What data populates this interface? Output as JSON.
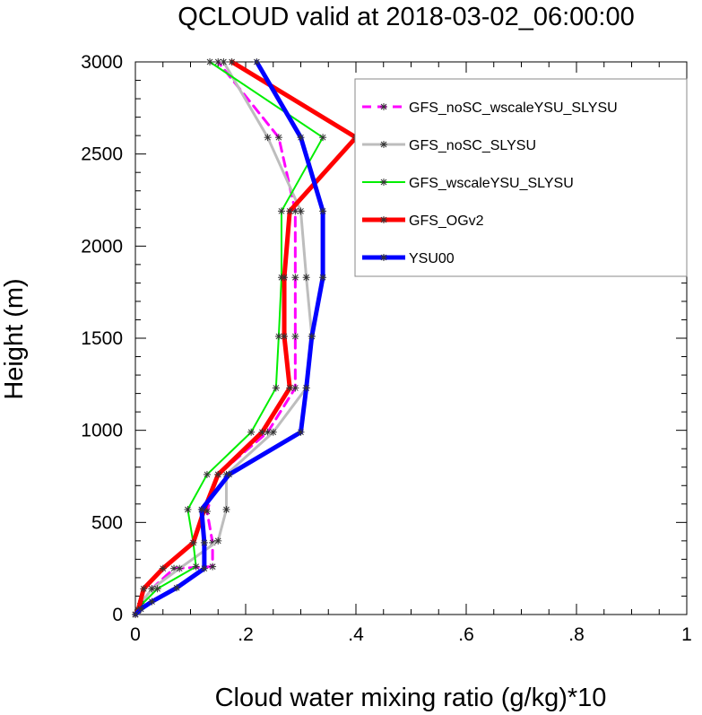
{
  "chart_data": {
    "type": "line",
    "title": "QCLOUD valid at 2018-03-02_06:00:00",
    "xlabel": "Cloud water mixing ratio (g/kg)*10",
    "ylabel": "Height (m)",
    "xlim": [
      0,
      1
    ],
    "ylim": [
      0,
      3000
    ],
    "x_ticks": [
      0,
      0.2,
      0.4,
      0.6,
      0.8,
      1
    ],
    "x_tick_labels": [
      "0",
      ".2",
      ".4",
      ".6",
      ".8",
      "1"
    ],
    "y_ticks": [
      0,
      500,
      1000,
      1500,
      2000,
      2500,
      3000
    ],
    "y_tick_labels": [
      "0",
      "500",
      "1000",
      "1500",
      "2000",
      "2500",
      "3000"
    ],
    "grid": false,
    "legend_position": "top-right",
    "series": [
      {
        "name": "GFS_noSC_wscaleYSU_SLYSU",
        "color": "#ff00ff",
        "dashed": true,
        "width": 3,
        "points": [
          [
            0,
            0
          ],
          [
            0.005,
            25
          ],
          [
            0.01,
            60
          ],
          [
            0.03,
            140
          ],
          [
            0.07,
            250
          ],
          [
            0.14,
            260
          ],
          [
            0.14,
            390
          ],
          [
            0.13,
            560
          ],
          [
            0.15,
            760
          ],
          [
            0.24,
            990
          ],
          [
            0.29,
            1230
          ],
          [
            0.29,
            1510
          ],
          [
            0.29,
            1830
          ],
          [
            0.29,
            2190
          ],
          [
            0.26,
            2590
          ],
          [
            0.15,
            3000
          ]
        ]
      },
      {
        "name": "GFS_noSC_SLYSU",
        "color": "#bdbdbd",
        "dashed": false,
        "width": 3,
        "points": [
          [
            0,
            0
          ],
          [
            0.005,
            25
          ],
          [
            0.01,
            60
          ],
          [
            0.03,
            140
          ],
          [
            0.08,
            250
          ],
          [
            0.15,
            400
          ],
          [
            0.165,
            570
          ],
          [
            0.165,
            760
          ],
          [
            0.25,
            990
          ],
          [
            0.31,
            1230
          ],
          [
            0.32,
            1510
          ],
          [
            0.31,
            1830
          ],
          [
            0.3,
            2190
          ],
          [
            0.24,
            2590
          ],
          [
            0.16,
            3000
          ]
        ]
      },
      {
        "name": "GFS_wscaleYSU_SLYSU",
        "color": "#00ee00",
        "dashed": false,
        "width": 2,
        "points": [
          [
            0,
            0
          ],
          [
            0.005,
            20
          ],
          [
            0.01,
            50
          ],
          [
            0.04,
            140
          ],
          [
            0.11,
            260
          ],
          [
            0.105,
            390
          ],
          [
            0.095,
            570
          ],
          [
            0.13,
            760
          ],
          [
            0.21,
            990
          ],
          [
            0.255,
            1230
          ],
          [
            0.26,
            1510
          ],
          [
            0.265,
            1830
          ],
          [
            0.265,
            2190
          ],
          [
            0.34,
            2590
          ],
          [
            0.135,
            3000
          ]
        ]
      },
      {
        "name": "GFS_OGv2",
        "color": "#ff0000",
        "dashed": false,
        "width": 5,
        "points": [
          [
            0,
            0
          ],
          [
            0.005,
            25
          ],
          [
            0.015,
            140
          ],
          [
            0.05,
            250
          ],
          [
            0.105,
            390
          ],
          [
            0.125,
            570
          ],
          [
            0.15,
            760
          ],
          [
            0.23,
            990
          ],
          [
            0.28,
            1230
          ],
          [
            0.27,
            1510
          ],
          [
            0.27,
            1830
          ],
          [
            0.28,
            2190
          ],
          [
            0.4,
            2590
          ],
          [
            0.175,
            3000
          ]
        ]
      },
      {
        "name": "YSU00",
        "color": "#0000ff",
        "dashed": false,
        "width": 5,
        "points": [
          [
            0,
            0
          ],
          [
            0.01,
            30
          ],
          [
            0.03,
            70
          ],
          [
            0.075,
            145
          ],
          [
            0.125,
            250
          ],
          [
            0.125,
            390
          ],
          [
            0.12,
            570
          ],
          [
            0.17,
            760
          ],
          [
            0.3,
            990
          ],
          [
            0.31,
            1230
          ],
          [
            0.32,
            1510
          ],
          [
            0.34,
            1830
          ],
          [
            0.34,
            2190
          ],
          [
            0.3,
            2590
          ],
          [
            0.22,
            3000
          ]
        ]
      }
    ]
  }
}
